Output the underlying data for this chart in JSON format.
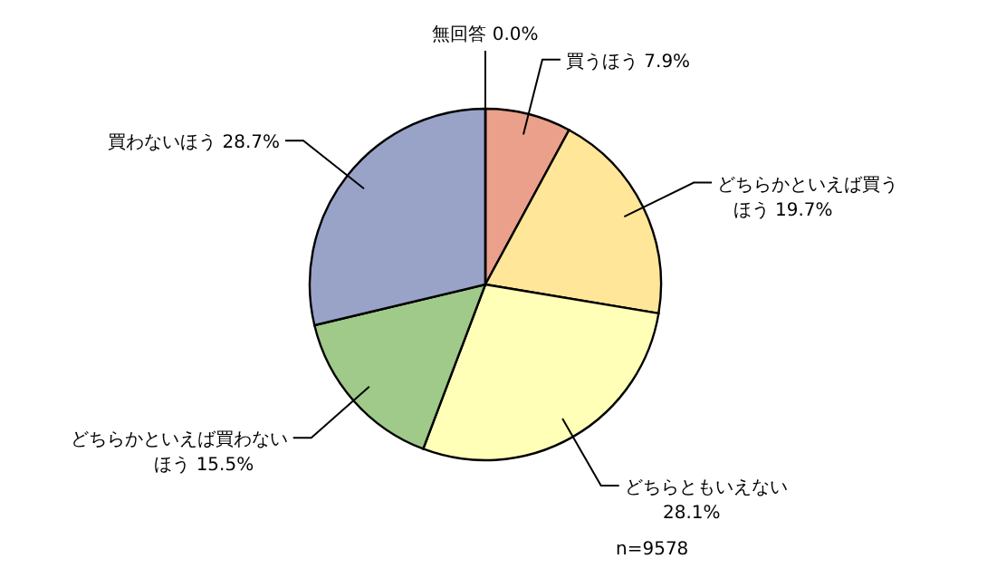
{
  "chart_data": {
    "type": "pie",
    "categories": [
      "買うほう",
      "どちらかといえば買うほう",
      "どちらともいえない",
      "どちらかといえば買わないほう",
      "買わないほう",
      "無回答"
    ],
    "values": [
      7.9,
      19.7,
      28.1,
      15.5,
      28.7,
      0.0
    ],
    "colors": [
      "#eaa08a",
      "#ffe699",
      "#ffffb7",
      "#9fca8a",
      "#99a3c8",
      "#cccccc"
    ],
    "value_labels": [
      "7.9%",
      "19.7%",
      "28.1%",
      "15.5%",
      "28.7%",
      "0.0%"
    ],
    "annotations": [
      "n=9578"
    ]
  }
}
